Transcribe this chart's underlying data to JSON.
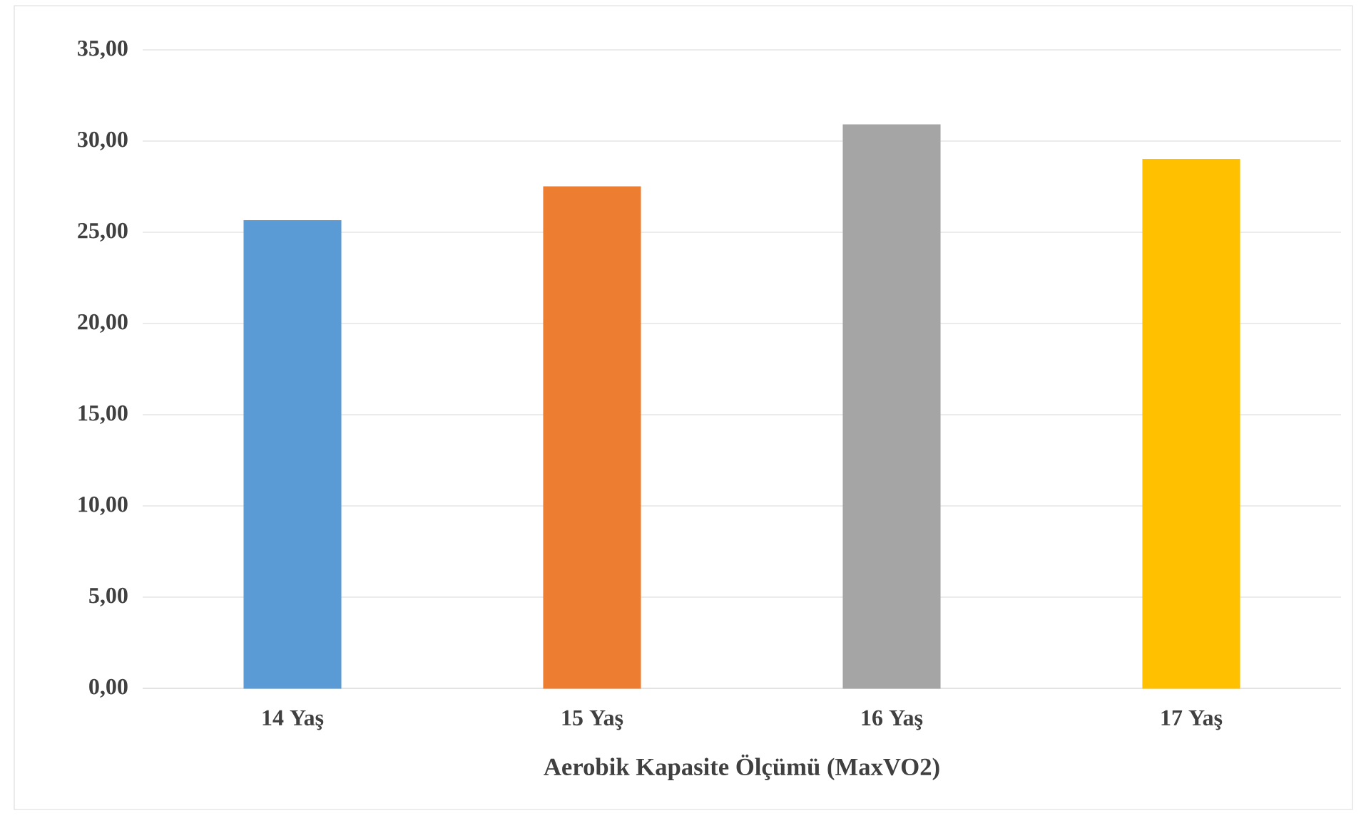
{
  "chart_data": {
    "type": "bar",
    "xlabel": "Aerobik Kapasite Ölçümü (MaxVO2)",
    "categories": [
      "14 Yaş",
      "15 Yaş",
      "16 Yaş",
      "17 Yaş"
    ],
    "values": [
      25.64,
      27.5,
      30.9,
      29.0
    ],
    "colors": [
      "#5b9bd5",
      "#ed7d31",
      "#a5a5a5",
      "#ffc000"
    ],
    "ylim": [
      0,
      35
    ],
    "yticks": [
      {
        "value": 0,
        "label": "0,00"
      },
      {
        "value": 5,
        "label": "5,00"
      },
      {
        "value": 10,
        "label": "10,00"
      },
      {
        "value": 15,
        "label": "15,00"
      },
      {
        "value": 20,
        "label": "20,00"
      },
      {
        "value": 25,
        "label": "25,00"
      },
      {
        "value": 30,
        "label": "30,00"
      },
      {
        "value": 35,
        "label": "35,00"
      }
    ],
    "grid": "y"
  }
}
